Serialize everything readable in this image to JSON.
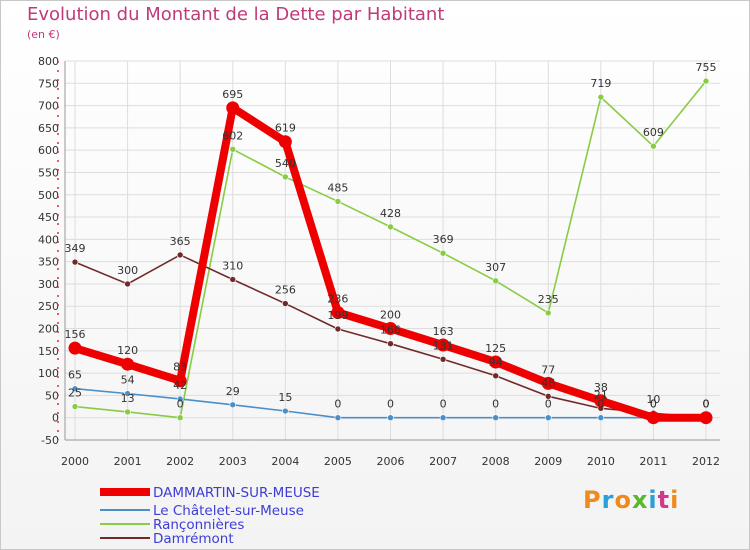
{
  "title": "Evolution du Montant de la Dette par Habitant",
  "unit": "(en €)",
  "logo": {
    "text": "Proxiti",
    "colors": [
      "#f08a1c",
      "#2aa0d8",
      "#f08a1c",
      "#5bb82e",
      "#2aa0d8",
      "#d03a8a",
      "#f08a1c"
    ]
  },
  "chart_data": {
    "type": "line",
    "title": "Evolution du Montant de la Dette par Habitant",
    "ylabel": "(en €)",
    "x": [
      "2000",
      "2001",
      "2002",
      "2003",
      "2004",
      "2005",
      "2006",
      "2007",
      "2008",
      "2009",
      "2010",
      "2011",
      "2012"
    ],
    "ylim": [
      -50,
      800
    ],
    "yticks": [
      "-50",
      "0",
      "50",
      "100",
      "150",
      "200",
      "250",
      "300",
      "350",
      "400",
      "450",
      "500",
      "550",
      "600",
      "650",
      "700",
      "750",
      "800"
    ],
    "legend": "bottom-left",
    "series": [
      {
        "name": "DAMMARTIN-SUR-MEUSE",
        "color": "#ee0000",
        "values": [
          156,
          120,
          83,
          695,
          619,
          236,
          200,
          163,
          125,
          77,
          38,
          0,
          0
        ]
      },
      {
        "name": "Le Châtelet-sur-Meuse",
        "color": "#4a8fc8",
        "values": [
          65,
          54,
          42,
          29,
          15,
          0,
          0,
          0,
          0,
          0,
          0,
          0,
          0
        ]
      },
      {
        "name": "Rançonnières",
        "color": "#88cc44",
        "values": [
          25,
          13,
          0,
          602,
          540,
          485,
          428,
          369,
          307,
          235,
          719,
          609,
          755
        ]
      },
      {
        "name": "Damrémont",
        "color": "#702a2a",
        "values": [
          349,
          300,
          365,
          310,
          256,
          199,
          166,
          131,
          94,
          48,
          21,
          10,
          0
        ]
      }
    ]
  }
}
